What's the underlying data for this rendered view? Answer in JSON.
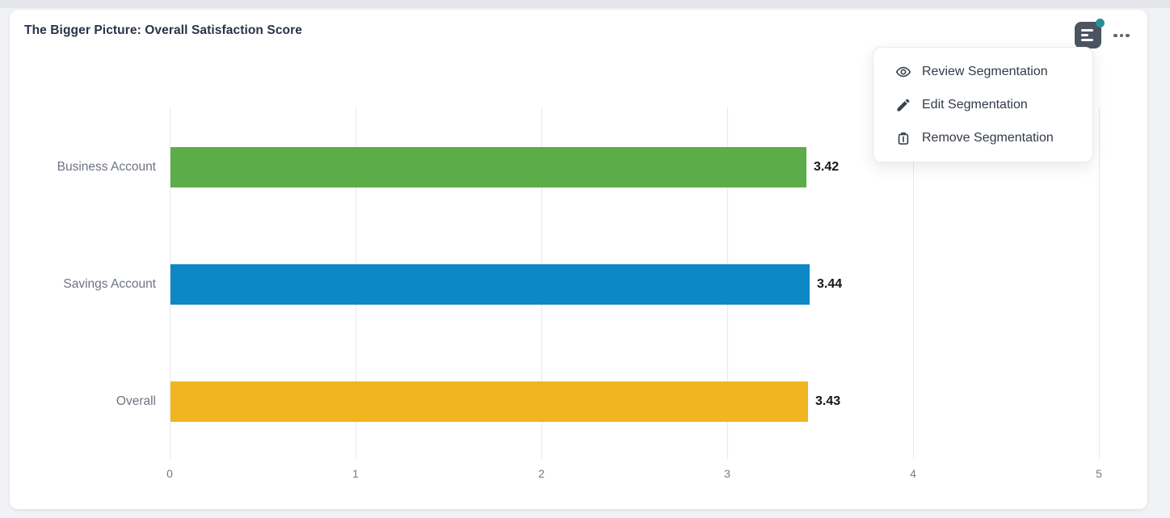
{
  "card": {
    "title": "The Bigger Picture: Overall Satisfaction Score"
  },
  "toolbar": {
    "segmentation_button_icon": "segmentation-lines-icon",
    "segmentation_badge_color": "#2b8f97",
    "more_button_icon": "ellipsis-icon"
  },
  "menu": {
    "items": [
      {
        "icon": "eye-icon",
        "label": "Review Segmentation"
      },
      {
        "icon": "pencil-icon",
        "label": "Edit Segmentation"
      },
      {
        "icon": "trash-icon",
        "label": "Remove Segmentation"
      }
    ]
  },
  "chart_data": {
    "type": "bar",
    "orientation": "horizontal",
    "title": "The Bigger Picture: Overall Satisfaction Score",
    "categories": [
      "Business Account",
      "Savings Account",
      "Overall"
    ],
    "values": [
      3.42,
      3.44,
      3.43
    ],
    "value_labels": [
      "3.42",
      "3.44",
      "3.43"
    ],
    "colors": [
      "#5BAD4A",
      "#0E87C6",
      "#F2B51F"
    ],
    "xlabel": "",
    "ylabel": "",
    "xlim": [
      0,
      5
    ],
    "xticks": [
      0,
      1,
      2,
      3,
      4,
      5
    ],
    "grid": true,
    "legend": false
  }
}
